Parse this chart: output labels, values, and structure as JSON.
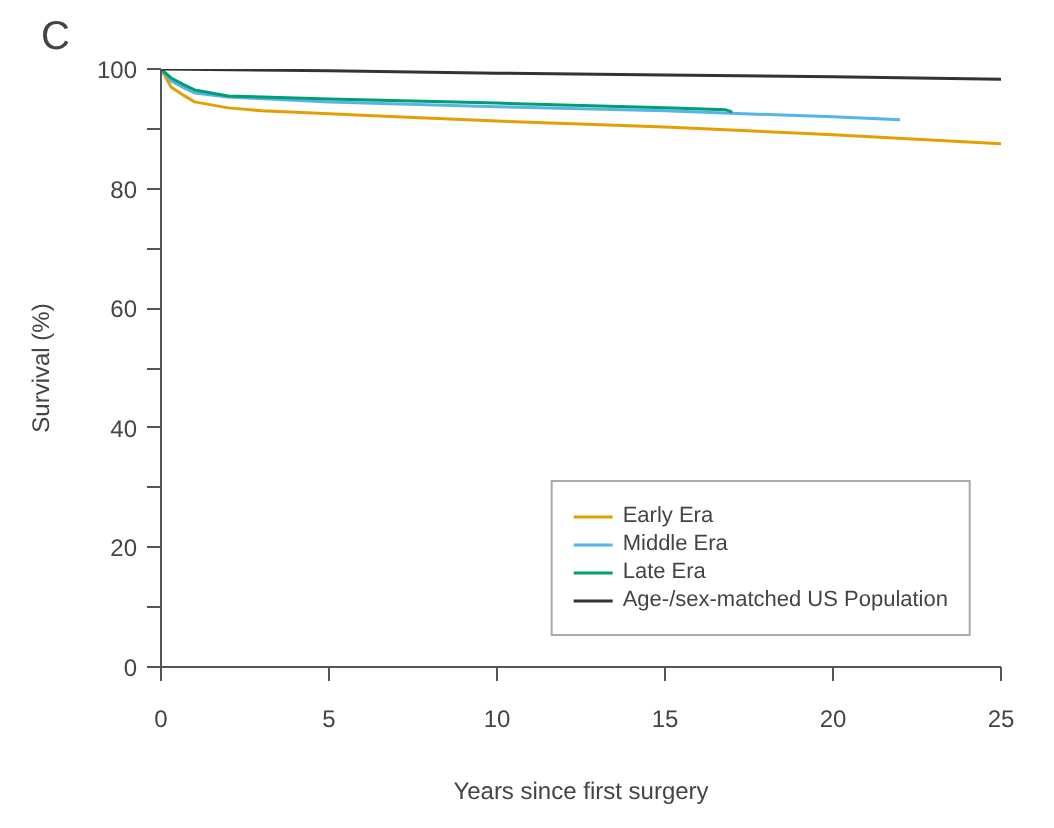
{
  "chart_data": {
    "type": "line",
    "title": "C",
    "xlabel": "Years since first surgery",
    "ylabel": "Survival (%)",
    "xlim": [
      0,
      25
    ],
    "ylim": [
      0,
      100
    ],
    "xticks": [
      0,
      5,
      10,
      15,
      20,
      25
    ],
    "yticks": [
      0,
      {
        "value": 10,
        "label": null
      },
      20,
      {
        "value": 30,
        "label": null
      },
      40,
      {
        "value": 50,
        "label": null
      },
      60,
      {
        "value": 70,
        "label": null
      },
      80,
      {
        "value": 90,
        "label": null
      },
      100
    ],
    "grid": false,
    "legend": "bottom right",
    "marker": "none",
    "line_style": "solid",
    "series": [
      {
        "name": "Early Era",
        "color": "#e69f00",
        "x": [
          0,
          0.3,
          0.7,
          1,
          2,
          3,
          5,
          7,
          10,
          15,
          20,
          25
        ],
        "values": [
          100,
          97,
          95.5,
          94.5,
          93.5,
          93,
          92.5,
          92,
          91.3,
          90.3,
          89,
          87.5
        ]
      },
      {
        "name": "Middle Era",
        "color": "#56b4e9",
        "x": [
          0,
          0.3,
          0.7,
          1,
          2,
          5,
          10,
          15,
          20,
          22
        ],
        "values": [
          100,
          98,
          96.8,
          96,
          95.3,
          94.5,
          93.7,
          93,
          92,
          91.5
        ]
      },
      {
        "name": "Late Era",
        "color": "#009e73",
        "x": [
          0,
          0.3,
          0.7,
          1,
          2,
          5,
          10,
          15,
          16.8,
          17
        ],
        "values": [
          100,
          98.5,
          97.3,
          96.5,
          95.5,
          95,
          94.3,
          93.5,
          93.2,
          92.8
        ]
      },
      {
        "name": "Age-/sex-matched US Population",
        "color": "#333333",
        "x": [
          0,
          5,
          10,
          15,
          20,
          25
        ],
        "values": [
          100,
          99.7,
          99.3,
          99,
          98.7,
          98.3
        ]
      }
    ]
  }
}
